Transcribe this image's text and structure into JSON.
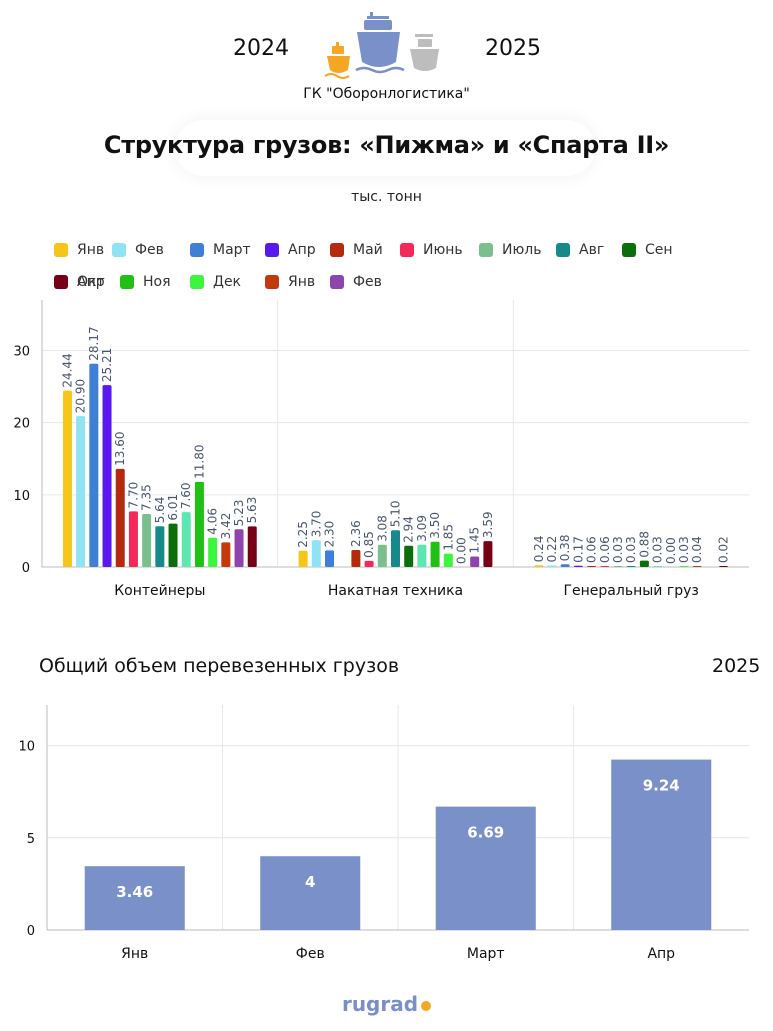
{
  "header": {
    "year_left": "2024",
    "year_right": "2025",
    "org": "ГК \"Оборонлогистика\"",
    "title": "Структура грузов: «Пижма» и «Спарта II»",
    "units": "тыс. тонн"
  },
  "ship_icons": {
    "left_color": "#f5a623",
    "center_color": "#7a90c8",
    "right_color": "#bdbdbd"
  },
  "chart_data": [
    {
      "type": "bar",
      "categories": [
        "Контейнеры",
        "Накатная техника",
        "Генеральный груз"
      ],
      "ylim": [
        0,
        37
      ],
      "yticks": [
        0,
        10,
        20,
        30
      ],
      "grid": true,
      "legend_position": "top-left",
      "series": [
        {
          "name": "Янв",
          "color": "#f5c518",
          "values": [
            24.44,
            2.25,
            0.24
          ]
        },
        {
          "name": "Фев",
          "color": "#8fe3f5",
          "values": [
            20.9,
            3.7,
            0.22
          ]
        },
        {
          "name": "Март",
          "color": "#3f7fd6",
          "values": [
            28.17,
            2.3,
            0.38
          ]
        },
        {
          "name": "Апр",
          "color": "#5a18f0",
          "values": [
            25.21,
            null,
            0.17
          ]
        },
        {
          "name": "Май",
          "color": "#b5290f",
          "values": [
            13.6,
            2.36,
            0.06
          ]
        },
        {
          "name": "Июнь",
          "color": "#f5285a",
          "values": [
            7.7,
            0.85,
            0.06
          ]
        },
        {
          "name": "Июль",
          "color": "#7cbf8e",
          "values": [
            7.35,
            3.08,
            0.03
          ]
        },
        {
          "name": "Авг",
          "color": "#168a8a",
          "values": [
            5.64,
            5.1,
            0.03
          ]
        },
        {
          "name": "Сен",
          "color": "#0a6e0a",
          "values": [
            6.01,
            2.94,
            0.88
          ]
        },
        {
          "name": "Окт",
          "color": "#5de6b0",
          "values": [
            7.6,
            3.09,
            0.03
          ]
        },
        {
          "name": "Ноя",
          "color": "#22c016",
          "values": [
            11.8,
            3.5,
            0.0
          ]
        },
        {
          "name": "Дек",
          "color": "#3ef53e",
          "values": [
            4.06,
            1.85,
            0.03
          ]
        },
        {
          "name": "Янв",
          "color": "#c23a0c",
          "values": [
            3.42,
            0.0,
            0.04
          ]
        },
        {
          "name": "Фев",
          "color": "#8e44ad",
          "values": [
            5.23,
            1.45,
            null
          ]
        },
        {
          "name": "Апр",
          "color": "#780016",
          "values": [
            5.63,
            3.59,
            0.02
          ]
        }
      ]
    },
    {
      "type": "bar",
      "title": "Общий объем перевезенных грузов",
      "year_label": "2025",
      "categories": [
        "Янв",
        "Фев",
        "Март",
        "Апр"
      ],
      "values": [
        3.46,
        4,
        6.69,
        9.24
      ],
      "value_labels": [
        "3.46",
        "4",
        "6.69",
        "9.24"
      ],
      "ylim": [
        0,
        12.2
      ],
      "yticks": [
        0,
        5,
        10
      ],
      "color": "#7a90c8",
      "grid": true
    }
  ],
  "footer": {
    "logo_text": "rugrad"
  }
}
